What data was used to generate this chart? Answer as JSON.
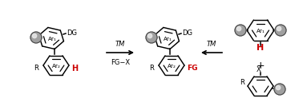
{
  "bg_color": "#ffffff",
  "black": "#000000",
  "red": "#cc0000",
  "tm_label": "TM",
  "fgx_label": "FG−X",
  "tm_label2": "TM",
  "plus_label": "+",
  "x_label": "X",
  "dg_label": "DG",
  "fg_label": "FG",
  "r_label": "R",
  "ar1_label": "Ar₁",
  "ar2_label": "Ar₂",
  "h_label": "H",
  "sphere_face": "#a0a0a0",
  "sphere_edge": "#404040",
  "sphere_highlight": "#e8e8e8"
}
